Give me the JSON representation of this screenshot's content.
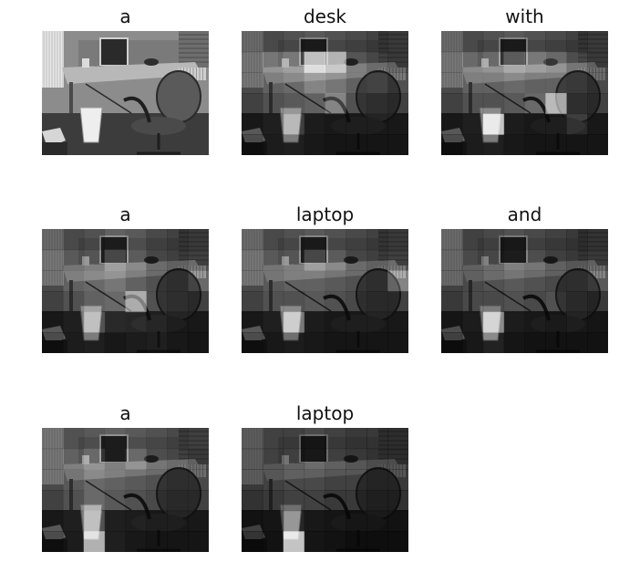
{
  "figure": {
    "type": "attention-visualization-grid",
    "panels": [
      {
        "word": "a",
        "heat": [
          [
            0.5,
            0.5,
            0.5,
            0.5,
            0.5,
            0.5,
            0.5,
            0.5
          ],
          [
            0.5,
            0.5,
            0.5,
            0.5,
            0.5,
            0.5,
            0.5,
            0.5
          ],
          [
            0.5,
            0.5,
            0.5,
            0.5,
            0.5,
            0.5,
            0.5,
            0.5
          ],
          [
            0.5,
            0.5,
            0.5,
            0.5,
            0.5,
            0.5,
            0.5,
            0.5
          ],
          [
            0.5,
            0.5,
            0.5,
            0.5,
            0.5,
            0.5,
            0.5,
            0.5
          ],
          [
            0.5,
            0.5,
            0.5,
            0.5,
            0.5,
            0.5,
            0.5,
            0.5
          ]
        ],
        "base": true
      },
      {
        "word": "desk",
        "heat": [
          [
            0.25,
            0.3,
            0.35,
            0.4,
            0.35,
            0.3,
            0.25,
            0.3
          ],
          [
            0.3,
            0.55,
            0.6,
            0.9,
            0.8,
            0.45,
            0.35,
            0.3
          ],
          [
            0.3,
            0.45,
            0.5,
            0.6,
            0.55,
            0.45,
            0.5,
            0.35
          ],
          [
            0.25,
            0.35,
            0.4,
            0.45,
            0.6,
            0.35,
            0.3,
            0.25
          ],
          [
            0.2,
            0.3,
            0.55,
            0.25,
            0.2,
            0.2,
            0.2,
            0.2
          ],
          [
            0.15,
            0.25,
            0.3,
            0.2,
            0.15,
            0.15,
            0.15,
            0.15
          ]
        ]
      },
      {
        "word": "with",
        "heat": [
          [
            0.25,
            0.3,
            0.35,
            0.4,
            0.35,
            0.3,
            0.25,
            0.3
          ],
          [
            0.3,
            0.5,
            0.55,
            0.65,
            0.6,
            0.55,
            0.4,
            0.3
          ],
          [
            0.3,
            0.45,
            0.45,
            0.5,
            0.45,
            0.45,
            0.4,
            0.3
          ],
          [
            0.25,
            0.35,
            0.35,
            0.4,
            0.5,
            0.8,
            0.3,
            0.25
          ],
          [
            0.2,
            0.3,
            0.9,
            0.25,
            0.2,
            0.2,
            0.45,
            0.2
          ],
          [
            0.15,
            0.25,
            0.3,
            0.2,
            0.15,
            0.15,
            0.15,
            0.15
          ]
        ]
      },
      {
        "word": "a",
        "heat": [
          [
            0.25,
            0.3,
            0.35,
            0.45,
            0.4,
            0.3,
            0.25,
            0.3
          ],
          [
            0.3,
            0.4,
            0.45,
            0.6,
            0.5,
            0.35,
            0.3,
            0.35
          ],
          [
            0.3,
            0.45,
            0.5,
            0.55,
            0.45,
            0.35,
            0.3,
            0.5
          ],
          [
            0.25,
            0.35,
            0.45,
            0.5,
            0.75,
            0.35,
            0.3,
            0.25
          ],
          [
            0.2,
            0.3,
            0.6,
            0.45,
            0.4,
            0.3,
            0.2,
            0.2
          ],
          [
            0.15,
            0.25,
            0.3,
            0.2,
            0.25,
            0.3,
            0.2,
            0.15
          ]
        ]
      },
      {
        "word": "laptop",
        "heat": [
          [
            0.25,
            0.3,
            0.35,
            0.4,
            0.35,
            0.3,
            0.25,
            0.3
          ],
          [
            0.3,
            0.4,
            0.45,
            0.6,
            0.5,
            0.35,
            0.3,
            0.35
          ],
          [
            0.3,
            0.4,
            0.45,
            0.45,
            0.4,
            0.35,
            0.3,
            0.6
          ],
          [
            0.25,
            0.35,
            0.35,
            0.4,
            0.35,
            0.3,
            0.25,
            0.25
          ],
          [
            0.2,
            0.3,
            0.7,
            0.25,
            0.2,
            0.2,
            0.2,
            0.2
          ],
          [
            0.15,
            0.2,
            0.25,
            0.2,
            0.15,
            0.15,
            0.15,
            0.15
          ]
        ]
      },
      {
        "word": "and",
        "heat": [
          [
            0.25,
            0.25,
            0.3,
            0.35,
            0.3,
            0.25,
            0.2,
            0.25
          ],
          [
            0.25,
            0.3,
            0.35,
            0.45,
            0.4,
            0.3,
            0.25,
            0.3
          ],
          [
            0.25,
            0.3,
            0.35,
            0.4,
            0.35,
            0.3,
            0.3,
            0.4
          ],
          [
            0.2,
            0.3,
            0.3,
            0.35,
            0.3,
            0.35,
            0.25,
            0.2
          ],
          [
            0.15,
            0.25,
            0.75,
            0.25,
            0.2,
            0.15,
            0.2,
            0.15
          ],
          [
            0.1,
            0.2,
            0.35,
            0.15,
            0.1,
            0.1,
            0.1,
            0.1
          ]
        ]
      },
      {
        "word": "a",
        "heat": [
          [
            0.3,
            0.35,
            0.4,
            0.45,
            0.4,
            0.35,
            0.3,
            0.35
          ],
          [
            0.3,
            0.45,
            0.55,
            0.45,
            0.55,
            0.4,
            0.35,
            0.3
          ],
          [
            0.3,
            0.4,
            0.5,
            0.45,
            0.4,
            0.35,
            0.3,
            0.3
          ],
          [
            0.25,
            0.35,
            0.5,
            0.4,
            0.35,
            0.3,
            0.25,
            0.25
          ],
          [
            0.2,
            0.3,
            0.6,
            0.3,
            0.25,
            0.2,
            0.2,
            0.2
          ],
          [
            0.15,
            0.25,
            0.85,
            0.3,
            0.2,
            0.15,
            0.15,
            0.15
          ]
        ]
      },
      {
        "word": "laptop",
        "heat": [
          [
            0.2,
            0.25,
            0.25,
            0.3,
            0.25,
            0.2,
            0.2,
            0.2
          ],
          [
            0.2,
            0.25,
            0.3,
            0.35,
            0.3,
            0.25,
            0.2,
            0.2
          ],
          [
            0.2,
            0.25,
            0.3,
            0.3,
            0.25,
            0.25,
            0.2,
            0.2
          ],
          [
            0.15,
            0.2,
            0.25,
            0.25,
            0.2,
            0.2,
            0.15,
            0.15
          ],
          [
            0.1,
            0.15,
            0.4,
            0.2,
            0.15,
            0.1,
            0.1,
            0.1
          ],
          [
            0.05,
            0.1,
            0.9,
            0.15,
            0.1,
            0.05,
            0.05,
            0.05
          ]
        ]
      }
    ]
  }
}
